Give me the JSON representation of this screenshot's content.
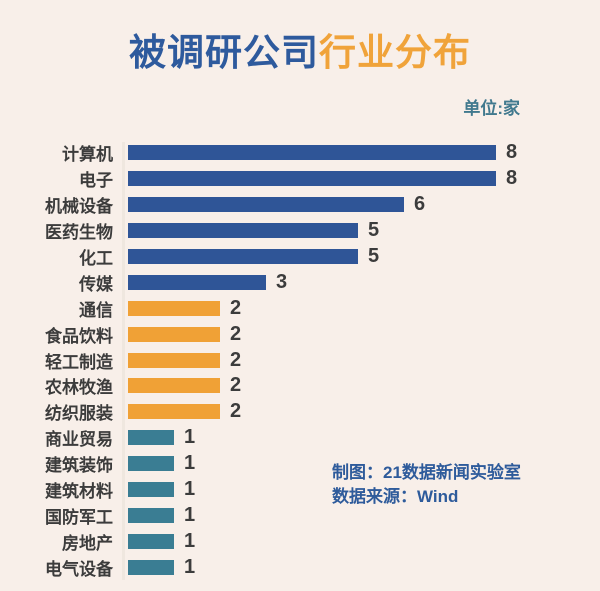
{
  "title": {
    "part1": "被调研公司",
    "part2": "行业分布"
  },
  "unit_label": "单位:家",
  "credits": {
    "line1": "制图：21数据新闻实验室",
    "line2": "数据来源：Wind"
  },
  "colors": {
    "background": "#f8efe9",
    "title_blue": "#2e5a9d",
    "title_orange": "#f0a33a",
    "bar_blue": "#2f5597",
    "bar_orange": "#f0a136",
    "bar_teal": "#3a7d93",
    "label_text": "#3c3c3c",
    "credits_text": "#2e5b9b",
    "unit_text": "#41798e"
  },
  "chart_data": {
    "type": "bar",
    "orientation": "horizontal",
    "title": "被调研公司行业分布",
    "unit": "单位:家",
    "xlabel": "",
    "ylabel": "",
    "xlim": [
      0,
      8
    ],
    "grid": false,
    "legend": false,
    "value_labels_shown": true,
    "categories": [
      "计算机",
      "电子",
      "机械设备",
      "医药生物",
      "化工",
      "传媒",
      "通信",
      "食品饮料",
      "轻工制造",
      "农林牧渔",
      "纺织服装",
      "商业贸易",
      "建筑装饰",
      "建筑材料",
      "国防军工",
      "房地产",
      "电气设备"
    ],
    "values": [
      8,
      8,
      6,
      5,
      5,
      3,
      2,
      2,
      2,
      2,
      2,
      1,
      1,
      1,
      1,
      1,
      1
    ],
    "bar_colors": [
      "#2f5597",
      "#2f5597",
      "#2f5597",
      "#2f5597",
      "#2f5597",
      "#2f5597",
      "#f0a136",
      "#f0a136",
      "#f0a136",
      "#f0a136",
      "#f0a136",
      "#3a7d93",
      "#3a7d93",
      "#3a7d93",
      "#3a7d93",
      "#3a7d93",
      "#3a7d93"
    ]
  }
}
